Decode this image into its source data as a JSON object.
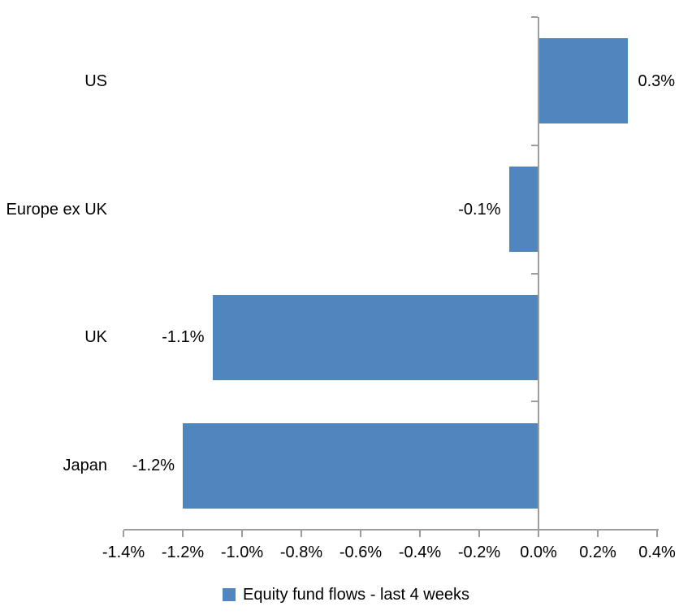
{
  "chart_data": {
    "type": "bar",
    "orientation": "horizontal",
    "title": "",
    "categories": [
      "US",
      "Europe ex UK",
      "UK",
      "Japan"
    ],
    "values": [
      0.3,
      -0.1,
      -1.1,
      -1.2
    ],
    "data_labels": [
      "0.3%",
      "-0.1%",
      "-1.1%",
      "-1.2%"
    ],
    "x_tick_labels": [
      "-1.4%",
      "-1.2%",
      "-1.0%",
      "-0.8%",
      "-0.6%",
      "-0.4%",
      "-0.2%",
      "0.0%",
      "0.2%",
      "0.4%"
    ],
    "x_tick_values": [
      -1.4,
      -1.2,
      -1.0,
      -0.8,
      -0.6,
      -0.4,
      -0.2,
      0.0,
      0.2,
      0.4
    ],
    "xlim": [
      -1.4,
      0.4
    ],
    "grid": "off",
    "legend": {
      "label": "Equity fund flows - last 4 weeks",
      "position": "bottom"
    },
    "colors": {
      "bar": "#4e86bd",
      "axis": "#9d9d9d",
      "text": "#000000",
      "background": "#ffffff"
    }
  }
}
